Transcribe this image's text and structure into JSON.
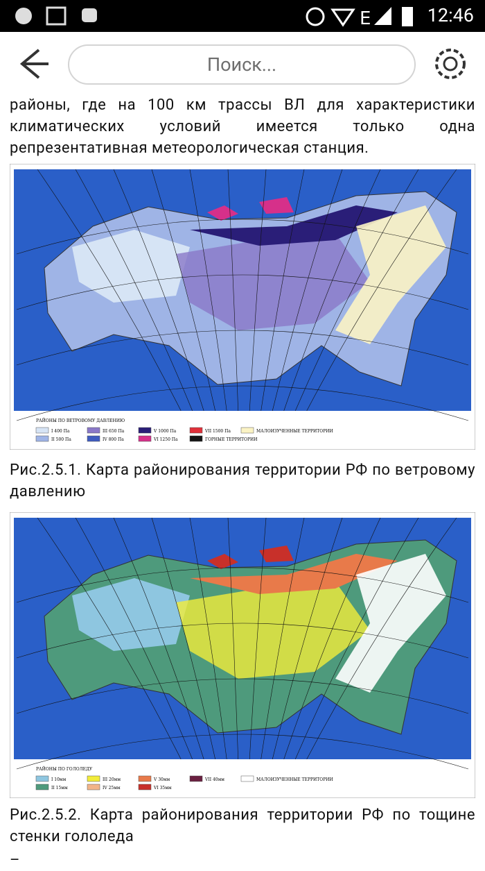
{
  "status_bar": {
    "time": "12:46"
  },
  "toolbar": {
    "search_placeholder": "Поиск..."
  },
  "content": {
    "paragraph": "районы, где на 100 км трассы ВЛ для характеристики климатических условий имеется только одна репрезентативная метеорологическая станция.",
    "figures": [
      {
        "legend_title": "РАЙОНЫ ПО ВЕТРОВОМУ ДАВЛЕНИЮ",
        "legend": [
          {
            "label": "I 400 Па",
            "color": "#d6e4f5"
          },
          {
            "label": "II 500 Па",
            "color": "#9fb4e6"
          },
          {
            "label": "III 650 Па",
            "color": "#8a78c8"
          },
          {
            "label": "IV 800 Па",
            "color": "#3f5cc0"
          },
          {
            "label": "V 1000 Па",
            "color": "#2a1e78"
          },
          {
            "label": "VI 1250 Па",
            "color": "#d6308a"
          },
          {
            "label": "VII 1500 Па",
            "color": "#e0303a"
          },
          {
            "label": "ГОРНЫЕ ТЕРРИТОРИИ",
            "color": "#151515"
          },
          {
            "label": "МАЛОИЗУЧЕННЫЕ ТЕРРИТОРИИ",
            "color": "#fbf3c4"
          }
        ],
        "caption": "Рис.2.5.1. Карта районирования территории РФ по ветровому давлению"
      },
      {
        "legend_title": "РАЙОНЫ ПО ГОЛОЛЕДУ",
        "legend": [
          {
            "label": "I 10мм",
            "color": "#8ec6e0"
          },
          {
            "label": "II 15мм",
            "color": "#4e9a7c"
          },
          {
            "label": "III 20мм",
            "color": "#f2ec3a"
          },
          {
            "label": "IV 25мм",
            "color": "#f2b488"
          },
          {
            "label": "V 30мм",
            "color": "#e87a4a"
          },
          {
            "label": "VI 35мм",
            "color": "#c8302a"
          },
          {
            "label": "VII 40мм",
            "color": "#6a2040"
          },
          {
            "label": "МАЛОИЗУЧЕННЫЕ ТЕРРИТОРИИ",
            "color": "#ffffff"
          }
        ],
        "caption": "Рис.2.5.2. Карта районирования территории РФ по тощине стенки гололеда"
      }
    ],
    "trailing": "–"
  }
}
